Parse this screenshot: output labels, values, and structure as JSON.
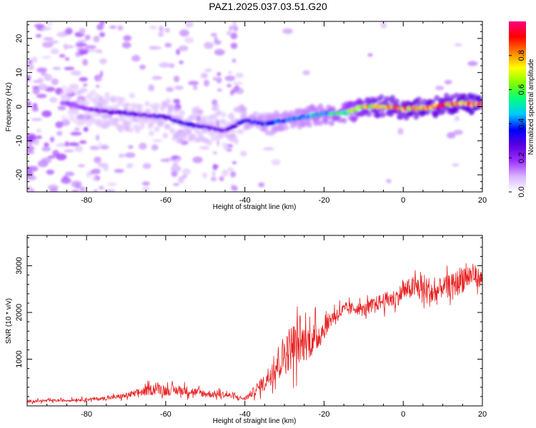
{
  "title": "PAZ1.2025.037.03.51.G20",
  "chart_data": [
    {
      "type": "heatmap",
      "xlabel": "Height of straight line (km)",
      "ylabel": "Frequency (Hz)",
      "xlim": [
        -95,
        20
      ],
      "ylim": [
        -25,
        25
      ],
      "xticks": [
        -80,
        -60,
        -40,
        -20,
        0,
        20
      ],
      "yticks": [
        -20,
        -10,
        0,
        10,
        20
      ],
      "colorbar": {
        "label": "Normalized spectral amplitude",
        "range": [
          0,
          1
        ],
        "ticks": [
          "0.0",
          "0.2",
          "0.4",
          "0.6",
          "0.8"
        ],
        "colors": [
          "#ffffff",
          "#d8b4ff",
          "#9b30ff",
          "#5a00e0",
          "#0000ff",
          "#00c8ff",
          "#00ff80",
          "#80ff00",
          "#ffff00",
          "#ff8000",
          "#ff0000",
          "#ff0080"
        ]
      },
      "ridge": {
        "x": [
          -85,
          -80,
          -75,
          -70,
          -65,
          -60,
          -55,
          -50,
          -45,
          -40,
          -35,
          -30,
          -25,
          -20,
          -15,
          -10,
          -5,
          0,
          5,
          10,
          15,
          20
        ],
        "freq": [
          1,
          -0.5,
          -1.5,
          -2,
          -2.5,
          -3,
          -5,
          -6,
          -7,
          -4,
          -5,
          -4,
          -3,
          -2,
          -2,
          0,
          0,
          -0.5,
          -0.5,
          0.5,
          1,
          0.5
        ],
        "amplitude": [
          0.18,
          0.2,
          0.25,
          0.28,
          0.26,
          0.3,
          0.3,
          0.28,
          0.22,
          0.35,
          0.38,
          0.4,
          0.42,
          0.5,
          0.55,
          0.75,
          0.85,
          0.85,
          0.9,
          0.85,
          0.9,
          0.95
        ]
      }
    },
    {
      "type": "line",
      "xlabel": "Height of straight line (km)",
      "ylabel": "SNR (10 * v/v)",
      "xlim": [
        -95,
        20
      ],
      "ylim": [
        0,
        3650
      ],
      "xticks": [
        -80,
        -60,
        -40,
        -20,
        0,
        20
      ],
      "yticks": [
        1000,
        2000,
        3000
      ],
      "color": "#e82020",
      "series": [
        {
          "x": [
            -95,
            -90,
            -85,
            -80,
            -75,
            -70,
            -65,
            -62,
            -60,
            -55,
            -50,
            -45,
            -40,
            -35,
            -32,
            -30,
            -28,
            -25,
            -22,
            -20,
            -18,
            -15,
            -12,
            -10,
            -8,
            -5,
            -2,
            0,
            3,
            5,
            8,
            10,
            13,
            15,
            18,
            20
          ],
          "y": [
            100,
            110,
            120,
            140,
            160,
            220,
            320,
            380,
            330,
            330,
            260,
            240,
            150,
            500,
            900,
            1100,
            1300,
            1350,
            1450,
            1650,
            1900,
            2050,
            2100,
            2050,
            2150,
            2250,
            2300,
            2450,
            2550,
            2500,
            2400,
            2550,
            2600,
            2750,
            2800,
            2700
          ],
          "spread": [
            60,
            60,
            60,
            70,
            80,
            120,
            200,
            260,
            220,
            200,
            160,
            140,
            80,
            350,
            700,
            900,
            1000,
            800,
            700,
            450,
            350,
            300,
            250,
            280,
            300,
            350,
            400,
            400,
            500,
            700,
            600,
            400,
            500,
            650,
            450,
            350
          ]
        }
      ]
    }
  ]
}
